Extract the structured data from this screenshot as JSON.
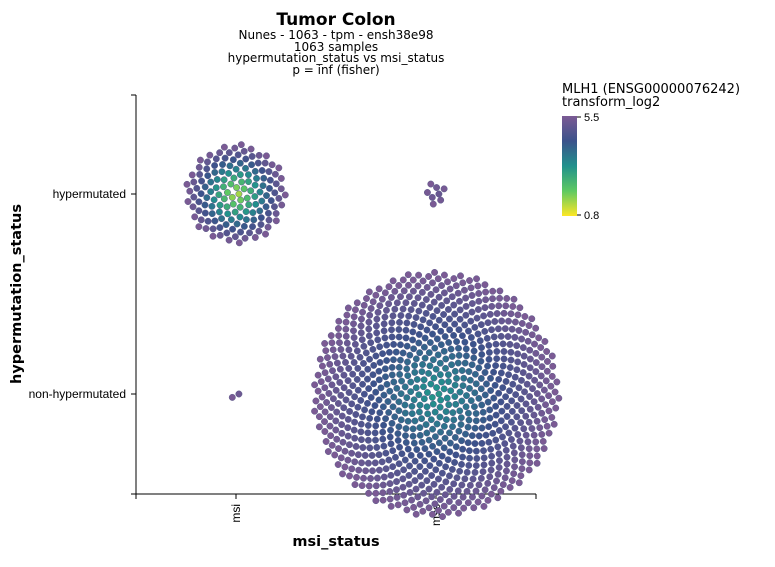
{
  "chart_data": {
    "type": "scatter",
    "title": "Tumor Colon",
    "subtitle_lines": [
      "Nunes - 1063 - tpm - ensh38e98",
      "1063 samples",
      "hypermutation_status vs msi_status",
      "p = inf (fisher)"
    ],
    "xlabel": "msi_status",
    "ylabel": "hypermutation_status",
    "x_categories": [
      "msi",
      "mss"
    ],
    "y_categories": [
      "hypermutated",
      "non-hypermutated"
    ],
    "groups": [
      {
        "x": "msi",
        "y": "hypermutated",
        "count": 150,
        "center_value": 1.2
      },
      {
        "x": "mss",
        "y": "hypermutated",
        "count": 8,
        "center_value": 5.0
      },
      {
        "x": "msi",
        "y": "non-hypermutated",
        "count": 2,
        "center_value": 5.0
      },
      {
        "x": "mss",
        "y": "non-hypermutated",
        "count": 900,
        "center_value": 3.0
      }
    ],
    "colorbar": {
      "title_line1": "MLH1 (ENSG00000076242)",
      "title_line2": "transform_log2",
      "min": 0.8,
      "max": 5.5,
      "min_label": "0.8",
      "max_label": "5.5",
      "colorscale": "viridis"
    },
    "legend_position": "right"
  }
}
